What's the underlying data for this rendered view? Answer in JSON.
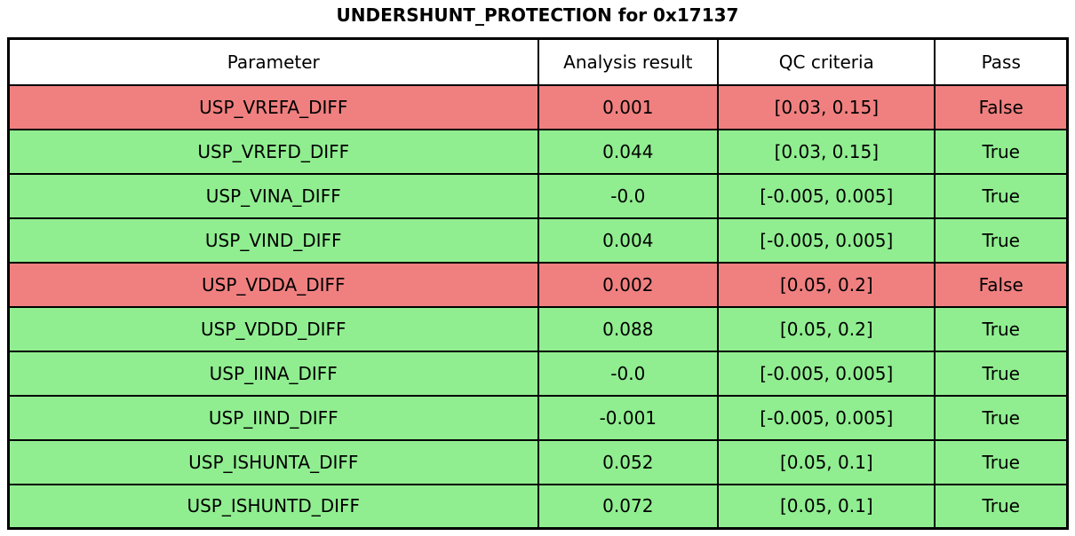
{
  "colors": {
    "pass_row": "#90ee90",
    "fail_row": "#f08080",
    "border": "#000000",
    "header_bg": "#ffffff",
    "text": "#000000"
  },
  "chart_data": {
    "type": "table",
    "title": "UNDERSHUNT_PROTECTION for 0x17137",
    "columns": [
      "Parameter",
      "Analysis result",
      "QC criteria",
      "Pass"
    ],
    "rows": [
      {
        "parameter": "USP_VREFA_DIFF",
        "analysis_result": "0.001",
        "qc_criteria": "[0.03, 0.15]",
        "pass": "False"
      },
      {
        "parameter": "USP_VREFD_DIFF",
        "analysis_result": "0.044",
        "qc_criteria": "[0.03, 0.15]",
        "pass": "True"
      },
      {
        "parameter": "USP_VINA_DIFF",
        "analysis_result": "-0.0",
        "qc_criteria": "[-0.005, 0.005]",
        "pass": "True"
      },
      {
        "parameter": "USP_VIND_DIFF",
        "analysis_result": "0.004",
        "qc_criteria": "[-0.005, 0.005]",
        "pass": "True"
      },
      {
        "parameter": "USP_VDDA_DIFF",
        "analysis_result": "0.002",
        "qc_criteria": "[0.05, 0.2]",
        "pass": "False"
      },
      {
        "parameter": "USP_VDDD_DIFF",
        "analysis_result": "0.088",
        "qc_criteria": "[0.05, 0.2]",
        "pass": "True"
      },
      {
        "parameter": "USP_IINA_DIFF",
        "analysis_result": "-0.0",
        "qc_criteria": "[-0.005, 0.005]",
        "pass": "True"
      },
      {
        "parameter": "USP_IIND_DIFF",
        "analysis_result": "-0.001",
        "qc_criteria": "[-0.005, 0.005]",
        "pass": "True"
      },
      {
        "parameter": "USP_ISHUNTA_DIFF",
        "analysis_result": "0.052",
        "qc_criteria": "[0.05, 0.1]",
        "pass": "True"
      },
      {
        "parameter": "USP_ISHUNTD_DIFF",
        "analysis_result": "0.072",
        "qc_criteria": "[0.05, 0.1]",
        "pass": "True"
      }
    ]
  }
}
